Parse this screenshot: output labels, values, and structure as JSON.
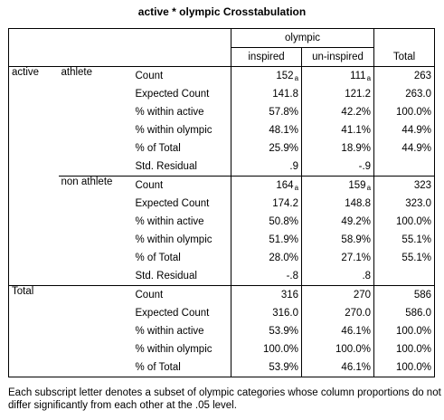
{
  "title": "active * olympic Crosstabulation",
  "header": {
    "group_label": "olympic",
    "col_inspired": "inspired",
    "col_uninspired": "un-inspired",
    "col_total": "Total"
  },
  "row_var": "active",
  "groups": [
    {
      "label": "athlete",
      "rows": [
        {
          "stat": "Count",
          "inspired": "152",
          "inspired_sub": "a",
          "uninspired": "111",
          "uninspired_sub": "a",
          "total": "263"
        },
        {
          "stat": "Expected Count",
          "inspired": "141.8",
          "uninspired": "121.2",
          "total": "263.0"
        },
        {
          "stat": "% within active",
          "inspired": "57.8%",
          "uninspired": "42.2%",
          "total": "100.0%"
        },
        {
          "stat": "% within olympic",
          "inspired": "48.1%",
          "uninspired": "41.1%",
          "total": "44.9%"
        },
        {
          "stat": "% of Total",
          "inspired": "25.9%",
          "uninspired": "18.9%",
          "total": "44.9%"
        },
        {
          "stat": "Std. Residual",
          "inspired": ".9",
          "uninspired": "-.9",
          "total": ""
        }
      ]
    },
    {
      "label": "non athlete",
      "rows": [
        {
          "stat": "Count",
          "inspired": "164",
          "inspired_sub": "a",
          "uninspired": "159",
          "uninspired_sub": "a",
          "total": "323"
        },
        {
          "stat": "Expected Count",
          "inspired": "174.2",
          "uninspired": "148.8",
          "total": "323.0"
        },
        {
          "stat": "% within active",
          "inspired": "50.8%",
          "uninspired": "49.2%",
          "total": "100.0%"
        },
        {
          "stat": "% within olympic",
          "inspired": "51.9%",
          "uninspired": "58.9%",
          "total": "55.1%"
        },
        {
          "stat": "% of Total",
          "inspired": "28.0%",
          "uninspired": "27.1%",
          "total": "55.1%"
        },
        {
          "stat": "Std. Residual",
          "inspired": "-.8",
          "uninspired": ".8",
          "total": ""
        }
      ]
    }
  ],
  "total_label": "Total",
  "total_rows": [
    {
      "stat": "Count",
      "inspired": "316",
      "uninspired": "270",
      "total": "586"
    },
    {
      "stat": "Expected Count",
      "inspired": "316.0",
      "uninspired": "270.0",
      "total": "586.0"
    },
    {
      "stat": "% within active",
      "inspired": "53.9%",
      "uninspired": "46.1%",
      "total": "100.0%"
    },
    {
      "stat": "% within olympic",
      "inspired": "100.0%",
      "uninspired": "100.0%",
      "total": "100.0%"
    },
    {
      "stat": "% of Total",
      "inspired": "53.9%",
      "uninspired": "46.1%",
      "total": "100.0%"
    }
  ],
  "footnote": "Each subscript letter denotes a subset of olympic categories whose column proportions do not differ significantly from each other at the .05 level."
}
